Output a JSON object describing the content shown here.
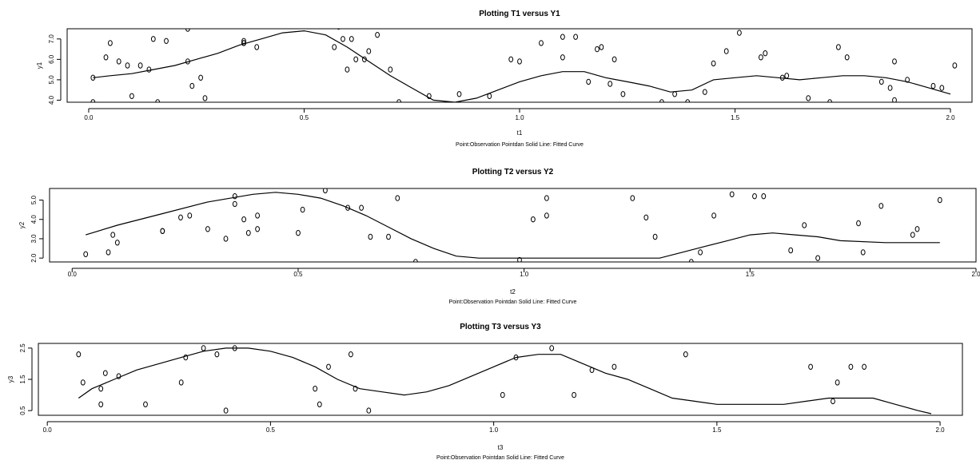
{
  "legend_note": "Point:Observation Pointdan Solid Line: Fitted Curve",
  "chart_data": [
    {
      "type": "scatter",
      "title": "Plotting T1 versus Y1",
      "xlabel": "t1",
      "ylabel": "y1",
      "note": "Point:Observation Pointdan Solid Line: Fitted Curve",
      "xlim": [
        -0.05,
        2.05
      ],
      "ylim": [
        3.9,
        7.5
      ],
      "xticks": [
        0.0,
        0.5,
        1.0,
        1.5,
        2.0
      ],
      "xtick_labels": [
        "0.0",
        "0.5",
        "1.0",
        "1.5",
        "2.0"
      ],
      "yticks": [
        4.0,
        5.0,
        6.0,
        7.0
      ],
      "ytick_labels": [
        "4.0",
        "5.0",
        "6.0",
        "7.0"
      ],
      "series": [
        {
          "kind": "points",
          "x": [
            0.01,
            0.01,
            0.04,
            0.05,
            0.07,
            0.09,
            0.1,
            0.12,
            0.14,
            0.15,
            0.16,
            0.18,
            0.23,
            0.23,
            0.24,
            0.26,
            0.27,
            0.36,
            0.36,
            0.36,
            0.39,
            0.57,
            0.58,
            0.59,
            0.6,
            0.61,
            0.62,
            0.64,
            0.65,
            0.67,
            0.7,
            0.72,
            0.79,
            0.86,
            0.93,
            0.98,
            1.0,
            1.05,
            1.1,
            1.1,
            1.13,
            1.16,
            1.18,
            1.19,
            1.21,
            1.22,
            1.24,
            1.33,
            1.36,
            1.39,
            1.43,
            1.45,
            1.48,
            1.51,
            1.56,
            1.57,
            1.61,
            1.62,
            1.67,
            1.72,
            1.74,
            1.76,
            1.84,
            1.86,
            1.87,
            1.87,
            1.9,
            1.96,
            1.98,
            2.01
          ],
          "y": [
            5.1,
            3.9,
            6.1,
            6.8,
            5.9,
            5.7,
            4.2,
            5.7,
            5.5,
            7.0,
            3.9,
            6.9,
            7.5,
            5.9,
            4.7,
            5.1,
            4.1,
            6.8,
            6.8,
            6.9,
            6.6,
            6.6,
            7.6,
            7.0,
            5.5,
            7.0,
            6.0,
            6.0,
            6.4,
            7.2,
            5.5,
            3.9,
            4.2,
            4.3,
            4.2,
            6.0,
            5.9,
            6.8,
            6.1,
            7.1,
            7.1,
            4.9,
            6.5,
            6.6,
            4.8,
            6.0,
            4.3,
            3.9,
            4.3,
            3.9,
            4.4,
            5.8,
            6.4,
            7.3,
            6.1,
            6.3,
            5.1,
            5.2,
            4.1,
            3.9,
            6.6,
            6.1,
            4.9,
            4.6,
            5.9,
            4.0,
            5.0,
            4.7,
            4.6,
            5.7
          ]
        },
        {
          "kind": "line",
          "x": [
            0.01,
            0.05,
            0.1,
            0.15,
            0.2,
            0.25,
            0.3,
            0.35,
            0.4,
            0.45,
            0.5,
            0.55,
            0.6,
            0.65,
            0.7,
            0.75,
            0.8,
            0.85,
            0.9,
            0.95,
            1.0,
            1.05,
            1.1,
            1.15,
            1.2,
            1.25,
            1.3,
            1.35,
            1.4,
            1.45,
            1.5,
            1.55,
            1.6,
            1.65,
            1.7,
            1.75,
            1.8,
            1.85,
            1.9,
            1.95,
            2.0
          ],
          "y": [
            5.1,
            5.2,
            5.3,
            5.5,
            5.7,
            6.0,
            6.3,
            6.7,
            7.0,
            7.3,
            7.4,
            7.2,
            6.6,
            5.9,
            5.2,
            4.6,
            4.0,
            3.9,
            4.1,
            4.5,
            4.9,
            5.2,
            5.4,
            5.4,
            5.1,
            4.9,
            4.7,
            4.4,
            4.5,
            5.0,
            5.1,
            5.2,
            5.1,
            5.0,
            5.1,
            5.2,
            5.2,
            5.1,
            4.9,
            4.6,
            4.3
          ]
        }
      ]
    },
    {
      "type": "scatter",
      "title": "Plotting T2 versus Y2",
      "xlabel": "t2",
      "ylabel": "y2",
      "note": "Point:Observation Pointdan Solid Line: Fitted Curve",
      "xlim": [
        -0.05,
        2.0
      ],
      "ylim": [
        1.8,
        5.6
      ],
      "xticks": [
        0.0,
        0.5,
        1.0,
        1.5,
        2.0
      ],
      "xtick_labels": [
        "0.0",
        "0.5",
        "1.0",
        "1.5",
        "2.0"
      ],
      "yticks": [
        2.0,
        3.0,
        4.0,
        5.0
      ],
      "ytick_labels": [
        "2.0",
        "3.0",
        "4.0",
        "5.0"
      ],
      "series": [
        {
          "kind": "points",
          "x": [
            0.03,
            0.08,
            0.09,
            0.1,
            0.2,
            0.2,
            0.24,
            0.26,
            0.3,
            0.34,
            0.36,
            0.36,
            0.38,
            0.39,
            0.41,
            0.41,
            0.5,
            0.51,
            0.56,
            0.61,
            0.64,
            0.66,
            0.7,
            0.72,
            0.76,
            0.99,
            1.02,
            1.05,
            1.05,
            1.24,
            1.27,
            1.29,
            1.37,
            1.39,
            1.42,
            1.46,
            1.51,
            1.53,
            1.59,
            1.62,
            1.65,
            1.74,
            1.75,
            1.79,
            1.86,
            1.87,
            1.92
          ],
          "y": [
            2.2,
            2.3,
            3.2,
            2.8,
            3.4,
            3.4,
            4.1,
            4.2,
            3.5,
            3.0,
            5.2,
            4.8,
            4.0,
            3.3,
            3.5,
            4.2,
            3.3,
            4.5,
            5.5,
            4.6,
            4.6,
            3.1,
            3.1,
            5.1,
            1.8,
            1.9,
            4.0,
            5.1,
            4.2,
            5.1,
            4.1,
            3.1,
            1.8,
            2.3,
            4.2,
            5.3,
            5.2,
            5.2,
            2.4,
            3.7,
            2.0,
            3.8,
            2.3,
            4.7,
            3.2,
            3.5,
            5.0
          ]
        },
        {
          "kind": "line",
          "x": [
            0.03,
            0.1,
            0.2,
            0.3,
            0.4,
            0.45,
            0.5,
            0.55,
            0.6,
            0.65,
            0.7,
            0.75,
            0.8,
            0.85,
            0.9,
            0.95,
            1.0,
            1.1,
            1.2,
            1.3,
            1.35,
            1.4,
            1.45,
            1.5,
            1.55,
            1.6,
            1.65,
            1.7,
            1.8,
            1.92
          ],
          "y": [
            3.2,
            3.7,
            4.3,
            4.9,
            5.3,
            5.4,
            5.3,
            5.1,
            4.7,
            4.2,
            3.6,
            3.0,
            2.5,
            2.1,
            2.0,
            2.0,
            2.0,
            2.0,
            2.0,
            2.0,
            2.3,
            2.6,
            2.9,
            3.2,
            3.3,
            3.2,
            3.1,
            2.9,
            2.8,
            2.8
          ]
        }
      ]
    },
    {
      "type": "scatter",
      "title": "Plotting T3 versus Y3",
      "xlabel": "t3",
      "ylabel": "y3",
      "note": "Point:Observation Pointdan Solid Line: Fitted Curve",
      "xlim": [
        -0.02,
        2.05
      ],
      "ylim": [
        0.35,
        2.65
      ],
      "xticks": [
        0.0,
        0.5,
        1.0,
        1.5,
        2.0
      ],
      "xtick_labels": [
        "0.0",
        "0.5",
        "1.0",
        "1.5",
        "2.0"
      ],
      "yticks": [
        0.5,
        1.5,
        2.5
      ],
      "ytick_labels": [
        "0.5",
        "1.5",
        "2.5"
      ],
      "series": [
        {
          "kind": "points",
          "x": [
            0.07,
            0.08,
            0.12,
            0.12,
            0.13,
            0.16,
            0.22,
            0.3,
            0.31,
            0.35,
            0.38,
            0.4,
            0.42,
            0.6,
            0.61,
            0.63,
            0.68,
            0.69,
            0.72,
            1.02,
            1.05,
            1.13,
            1.18,
            1.22,
            1.27,
            1.43,
            1.71,
            1.76,
            1.77,
            1.8,
            1.83
          ],
          "y": [
            2.3,
            1.4,
            1.2,
            0.7,
            1.7,
            1.6,
            0.7,
            1.4,
            2.2,
            2.5,
            2.3,
            0.5,
            2.5,
            1.2,
            0.7,
            1.9,
            2.3,
            1.2,
            0.5,
            1.0,
            2.2,
            2.5,
            1.0,
            1.8,
            1.9,
            2.3,
            1.9,
            0.8,
            1.4,
            1.9,
            1.9
          ]
        },
        {
          "kind": "line",
          "x": [
            0.07,
            0.1,
            0.15,
            0.2,
            0.25,
            0.3,
            0.35,
            0.4,
            0.45,
            0.5,
            0.55,
            0.6,
            0.65,
            0.7,
            0.75,
            0.8,
            0.85,
            0.9,
            0.95,
            1.0,
            1.05,
            1.1,
            1.15,
            1.2,
            1.25,
            1.3,
            1.35,
            1.4,
            1.45,
            1.5,
            1.55,
            1.6,
            1.65,
            1.7,
            1.75,
            1.8,
            1.85,
            1.9,
            1.95,
            1.98
          ],
          "y": [
            0.9,
            1.2,
            1.5,
            1.8,
            2.0,
            2.2,
            2.4,
            2.5,
            2.5,
            2.4,
            2.2,
            1.9,
            1.5,
            1.2,
            1.1,
            1.0,
            1.1,
            1.3,
            1.6,
            1.9,
            2.2,
            2.3,
            2.3,
            2.0,
            1.7,
            1.5,
            1.2,
            0.9,
            0.8,
            0.7,
            0.7,
            0.7,
            0.7,
            0.8,
            0.9,
            0.9,
            0.9,
            0.7,
            0.5,
            0.4
          ]
        }
      ]
    }
  ]
}
